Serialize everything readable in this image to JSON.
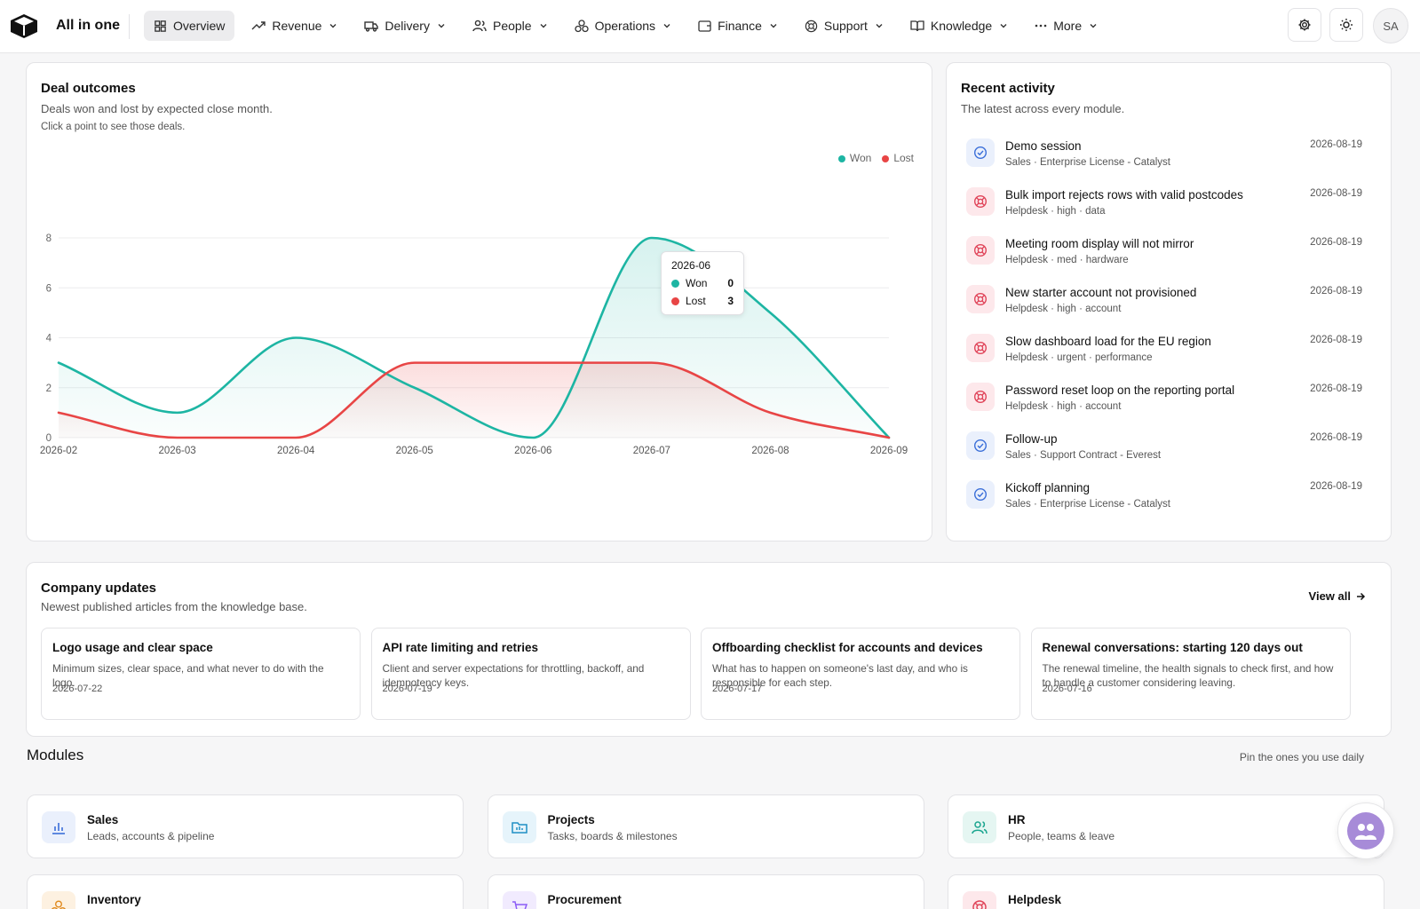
{
  "app": {
    "title": "All in one"
  },
  "nav": [
    {
      "label": "Overview",
      "icon": "grid-icon",
      "active": true
    },
    {
      "label": "Revenue",
      "icon": "trending-up-icon"
    },
    {
      "label": "Delivery",
      "icon": "truck-icon"
    },
    {
      "label": "People",
      "icon": "users-icon"
    },
    {
      "label": "Operations",
      "icon": "boxes-icon"
    },
    {
      "label": "Finance",
      "icon": "wallet-icon"
    },
    {
      "label": "Support",
      "icon": "lifebuoy-icon"
    },
    {
      "label": "Knowledge",
      "icon": "book-icon"
    },
    {
      "label": "More",
      "icon": "ellipsis-icon"
    }
  ],
  "user": {
    "initials": "SA"
  },
  "deal_outcomes": {
    "title": "Deal outcomes",
    "subtitle": "Deals won and lost by expected close month.",
    "hint": "Click a point to see those deals.",
    "tooltip": {
      "month": "2026-06",
      "won_label": "Won",
      "won_value": "0",
      "lost_label": "Lost",
      "lost_value": "3"
    }
  },
  "chart_data": {
    "type": "area",
    "categories": [
      "2026-02",
      "2026-03",
      "2026-04",
      "2026-05",
      "2026-06",
      "2026-07",
      "2026-08",
      "2026-09"
    ],
    "series": [
      {
        "name": "Won",
        "values": [
          3,
          1,
          4,
          2,
          0,
          8,
          5,
          0
        ],
        "color": "#1db5a3"
      },
      {
        "name": "Lost",
        "values": [
          1,
          0,
          0,
          3,
          3,
          3,
          1,
          0
        ],
        "color": "#e84545"
      }
    ],
    "yticks": [
      0,
      2,
      4,
      6,
      8
    ],
    "ylim": [
      0,
      8
    ],
    "grid": true,
    "legend": "top-right"
  },
  "activity": {
    "title": "Recent activity",
    "subtitle": "The latest across every module.",
    "items": [
      {
        "title": "Demo session",
        "meta": "Sales · Enterprise License - Catalyst",
        "date": "2026-08-19",
        "kind": "task"
      },
      {
        "title": "Bulk import rejects rows with valid postcodes",
        "meta": "Helpdesk · high · data",
        "date": "2026-08-19",
        "kind": "ticket"
      },
      {
        "title": "Meeting room display will not mirror",
        "meta": "Helpdesk · med · hardware",
        "date": "2026-08-19",
        "kind": "ticket"
      },
      {
        "title": "New starter account not provisioned",
        "meta": "Helpdesk · high · account",
        "date": "2026-08-19",
        "kind": "ticket"
      },
      {
        "title": "Slow dashboard load for the EU region",
        "meta": "Helpdesk · urgent · performance",
        "date": "2026-08-19",
        "kind": "ticket"
      },
      {
        "title": "Password reset loop on the reporting portal",
        "meta": "Helpdesk · high · account",
        "date": "2026-08-19",
        "kind": "ticket"
      },
      {
        "title": "Follow-up",
        "meta": "Sales · Support Contract - Everest",
        "date": "2026-08-19",
        "kind": "task"
      },
      {
        "title": "Kickoff planning",
        "meta": "Sales · Enterprise License - Catalyst",
        "date": "2026-08-19",
        "kind": "task"
      }
    ]
  },
  "updates": {
    "title": "Company updates",
    "subtitle": "Newest published articles from the knowledge base.",
    "view_all": "View all",
    "items": [
      {
        "title": "Logo usage and clear space",
        "desc": "Minimum sizes, clear space, and what never to do with the logo.",
        "date": "2026-07-22"
      },
      {
        "title": "API rate limiting and retries",
        "desc": "Client and server expectations for throttling, backoff, and idempotency keys.",
        "date": "2026-07-19"
      },
      {
        "title": "Offboarding checklist for accounts and devices",
        "desc": "What has to happen on someone's last day, and who is responsible for each step.",
        "date": "2026-07-17"
      },
      {
        "title": "Renewal conversations: starting 120 days out",
        "desc": "The renewal timeline, the health signals to check first, and how to handle a customer considering leaving.",
        "date": "2026-07-16"
      }
    ]
  },
  "modules": {
    "title": "Modules",
    "hint": "Pin the ones you use daily",
    "items": [
      {
        "title": "Sales",
        "desc": "Leads, accounts & pipeline",
        "icon": "bar-chart-icon",
        "color": "#3b6fd9",
        "bg": "#eaf0fc"
      },
      {
        "title": "Projects",
        "desc": "Tasks, boards & milestones",
        "icon": "folder-icon",
        "color": "#1f8fc4",
        "bg": "#e6f4fb"
      },
      {
        "title": "HR",
        "desc": "People, teams & leave",
        "icon": "users-icon",
        "color": "#1aa58f",
        "bg": "#e5f6f2"
      },
      {
        "title": "Inventory",
        "desc": "",
        "icon": "boxes-icon",
        "color": "#e08a1e",
        "bg": "#fdf1e1"
      },
      {
        "title": "Procurement",
        "desc": "",
        "icon": "cart-icon",
        "color": "#8b5cf6",
        "bg": "#f1ebfe"
      },
      {
        "title": "Helpdesk",
        "desc": "",
        "icon": "lifebuoy-icon",
        "color": "#e0455a",
        "bg": "#fde8eb"
      }
    ]
  }
}
